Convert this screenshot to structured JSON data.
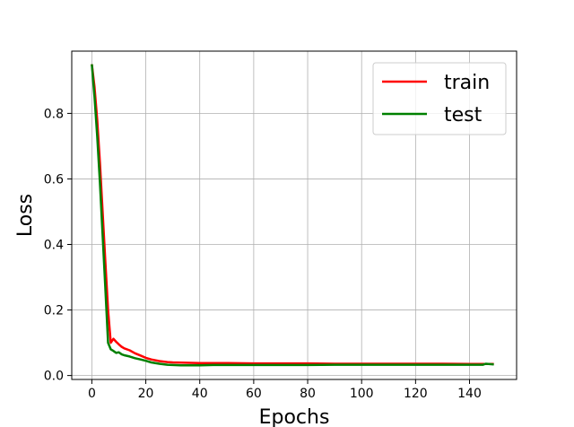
{
  "chart_data": {
    "type": "line",
    "title": "",
    "xlabel": "Epochs",
    "ylabel": "Loss",
    "xlim": [
      -7.45,
      157.45
    ],
    "ylim": [
      -0.012,
      0.99
    ],
    "xticks": [
      0,
      20,
      40,
      60,
      80,
      100,
      120,
      140
    ],
    "yticks": [
      0.0,
      0.2,
      0.4,
      0.6,
      0.8
    ],
    "xtick_labels": [
      "0",
      "20",
      "40",
      "60",
      "80",
      "100",
      "120",
      "140"
    ],
    "ytick_labels": [
      "0.0",
      "0.2",
      "0.4",
      "0.6",
      "0.8"
    ],
    "grid": true,
    "legend_position": "top-right",
    "series": [
      {
        "name": "train",
        "color": "#ff0000",
        "x": [
          0,
          1,
          2,
          3,
          4,
          5,
          6,
          7,
          8,
          9,
          10,
          11,
          12,
          14,
          16,
          18,
          20,
          22,
          25,
          28,
          30,
          35,
          40,
          45,
          50,
          60,
          70,
          80,
          90,
          100,
          110,
          120,
          130,
          140,
          149
        ],
        "values": [
          0.95,
          0.88,
          0.78,
          0.65,
          0.5,
          0.35,
          0.2,
          0.1,
          0.112,
          0.103,
          0.095,
          0.088,
          0.083,
          0.077,
          0.068,
          0.061,
          0.054,
          0.049,
          0.044,
          0.041,
          0.04,
          0.039,
          0.038,
          0.038,
          0.038,
          0.037,
          0.037,
          0.037,
          0.036,
          0.036,
          0.036,
          0.036,
          0.036,
          0.035,
          0.035
        ]
      },
      {
        "name": "test",
        "color": "#008000",
        "x": [
          0,
          1,
          2,
          3,
          4,
          5,
          6,
          7,
          8,
          9,
          10,
          11,
          12,
          14,
          16,
          18,
          20,
          22,
          25,
          28,
          30,
          33,
          35,
          40,
          45,
          50,
          60,
          70,
          80,
          90,
          100,
          110,
          120,
          130,
          140,
          145,
          146,
          149
        ],
        "values": [
          0.95,
          0.85,
          0.73,
          0.59,
          0.43,
          0.27,
          0.1,
          0.08,
          0.075,
          0.069,
          0.071,
          0.065,
          0.062,
          0.058,
          0.053,
          0.049,
          0.045,
          0.04,
          0.036,
          0.033,
          0.032,
          0.031,
          0.031,
          0.031,
          0.032,
          0.032,
          0.032,
          0.032,
          0.032,
          0.033,
          0.033,
          0.033,
          0.033,
          0.033,
          0.033,
          0.033,
          0.036,
          0.034
        ]
      }
    ]
  }
}
